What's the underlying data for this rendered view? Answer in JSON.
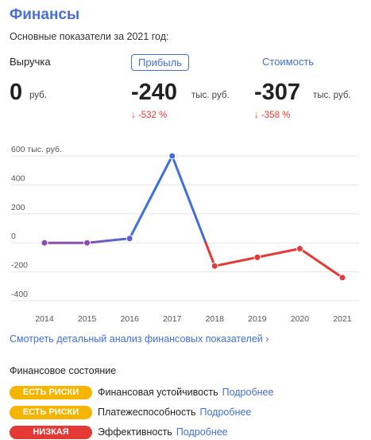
{
  "header": {
    "title": "Финансы",
    "subtitle": "Основные показатели за 2021 год:"
  },
  "metrics": {
    "revenue": {
      "label": "Выручка",
      "value": "0",
      "unit": "руб."
    },
    "profit": {
      "label": "Прибыль",
      "value": "-240",
      "unit": "тыс. руб.",
      "delta": "↓ -532 %"
    },
    "cost": {
      "label": "Стоимость",
      "value": "-307",
      "unit": "тыс. руб.",
      "delta": "↓ -358 %"
    }
  },
  "chart_data": {
    "type": "line",
    "title": "",
    "ylabel": "тыс. руб.",
    "y_unit_label": "600 тыс. руб.",
    "yticks": [
      "600 тыс. руб.",
      "400",
      "200",
      "0",
      "-200",
      "-400"
    ],
    "ytick_values": [
      600,
      400,
      200,
      0,
      -200,
      -400
    ],
    "ylim": [
      -400,
      600
    ],
    "categories": [
      "2014",
      "2015",
      "2016",
      "2017",
      "2018",
      "2019",
      "2020",
      "2021"
    ],
    "values": [
      0,
      0,
      30,
      600,
      -160,
      -100,
      -40,
      -240
    ],
    "colors": {
      "positive_low": "#8a4fae",
      "positive": "#3f6fd8",
      "negative": "#e53935"
    },
    "grid": true
  },
  "links": {
    "details": "Смотреть детальный анализ финансовых показателей ›"
  },
  "financial_state": {
    "heading": "Финансовое состояние",
    "rows": [
      {
        "badge": "ЕСТЬ РИСКИ",
        "badge_color": "#f4b400",
        "label": "Финансовая устойчивость",
        "more": "Подробнее"
      },
      {
        "badge": "ЕСТЬ РИСКИ",
        "badge_color": "#f4b400",
        "label": "Платежеспособность",
        "more": "Подробнее"
      },
      {
        "badge": "НИЗКАЯ",
        "badge_color": "#e53935",
        "label": "Эффективность",
        "more": "Подробнее"
      }
    ]
  }
}
